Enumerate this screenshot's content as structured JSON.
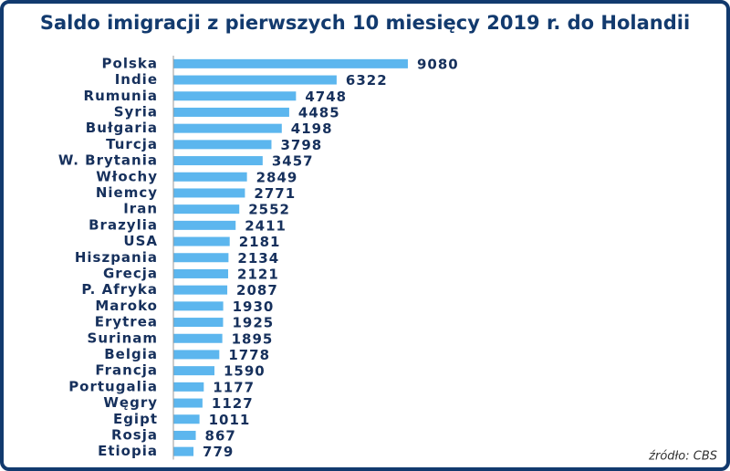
{
  "chart_data": {
    "type": "bar",
    "orientation": "horizontal",
    "title": "Saldo imigracji z pierwszych 10 miesięcy 2019 r. do Holandii",
    "source": "źródło: CBS",
    "categories": [
      "Polska",
      "Indie",
      "Rumunia",
      "Syria",
      "Bułgaria",
      "Turcja",
      "W. Brytania",
      "Włochy",
      "Niemcy",
      "Iran",
      "Brazylia",
      "USA",
      "Hiszpania",
      "Grecja",
      "P. Afryka",
      "Maroko",
      "Erytrea",
      "Surinam",
      "Belgia",
      "Francja",
      "Portugalia",
      "Węgry",
      "Egipt",
      "Rosja",
      "Etiopia"
    ],
    "values": [
      9080,
      6322,
      4748,
      4485,
      4198,
      3798,
      3457,
      2849,
      2771,
      2552,
      2411,
      2181,
      2134,
      2121,
      2087,
      1930,
      1925,
      1895,
      1778,
      1590,
      1177,
      1127,
      1011,
      867,
      779
    ],
    "color": "#5cb6ee",
    "xlim": [
      0,
      10000
    ]
  }
}
